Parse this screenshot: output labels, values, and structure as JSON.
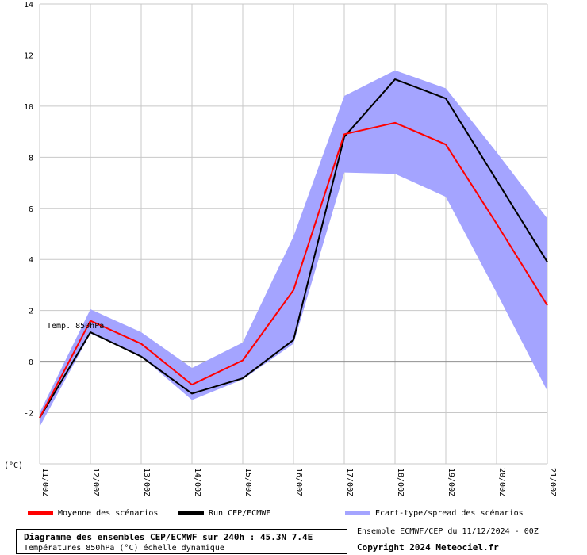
{
  "chart_data": {
    "type": "line",
    "x": [
      "11/00Z",
      "12/00Z",
      "13/00Z",
      "14/00Z",
      "15/00Z",
      "16/00Z",
      "17/00Z",
      "18/00Z",
      "19/00Z",
      "20/00Z",
      "21/00Z"
    ],
    "ylim": [
      -4,
      14
    ],
    "yticks": [
      -4,
      -2,
      0,
      2,
      4,
      6,
      8,
      10,
      12,
      14
    ],
    "ylabel": "(°C)",
    "annotation": "Temp. 850hPa",
    "grid": true,
    "series": [
      {
        "name": "Moyenne des scénarios",
        "color": "#ff0000",
        "values": [
          -2.2,
          1.6,
          0.7,
          -0.9,
          0.05,
          2.8,
          8.9,
          9.35,
          8.5,
          5.4,
          2.2
        ]
      },
      {
        "name": "Run CEP/ECMWF",
        "color": "#000000",
        "values": [
          -2.2,
          1.15,
          0.2,
          -1.25,
          -0.65,
          0.85,
          8.8,
          11.05,
          10.3,
          7.1,
          3.9
        ]
      }
    ],
    "spread": {
      "name": "Ecart-type/spread des scénarios",
      "color": "#a4a4ff",
      "upper": [
        -2.0,
        2.05,
        1.15,
        -0.25,
        0.75,
        4.9,
        10.4,
        11.4,
        10.7,
        8.2,
        5.6
      ],
      "lower": [
        -2.55,
        1.1,
        0.2,
        -1.5,
        -0.7,
        0.7,
        7.4,
        7.35,
        6.45,
        2.7,
        -1.15
      ]
    }
  },
  "footer": {
    "title": "Diagramme des ensembles CEP/ECMWF sur 240h : 45.3N 7.4E",
    "subtitle": "Températures 850hPa (°C) échelle dynamique",
    "run_info": "Ensemble ECMWF/CEP du 11/12/2024 - 00Z",
    "copyright": "Copyright 2024 Meteociel.fr"
  }
}
